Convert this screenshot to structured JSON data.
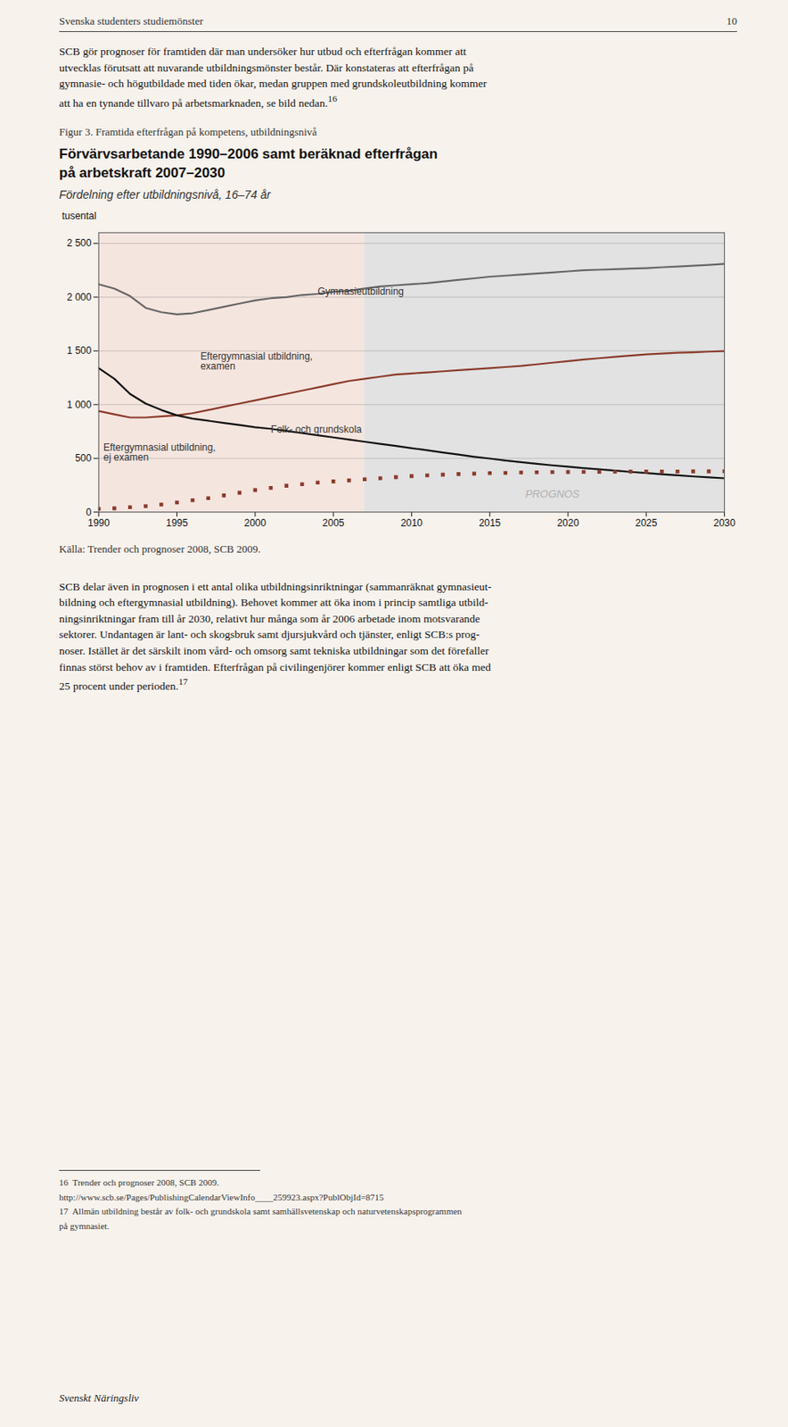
{
  "page": {
    "background": "#f7f2ec",
    "header_text": "Svenska studenters studiemönster",
    "page_num": "10",
    "para1": "SCB gör prognoser för framtiden där man undersöker hur utbud och efterfrågan kommer att\nutvecklas förutsatt att nuvarande utbildningsmönster består. Där konstateras att efterfrågan på\ngymnasie- och högutbildade med tiden ökar, medan gruppen med grundskoleutbildning kommer\natt ha en tynande tillvaro på arbetsmarknaden, se bild nedan.",
    "para1_super": "16",
    "fig_caption": "Figur 3. Framtida efterfrågan på kompetens, utbildningsnivå",
    "source": "Källa: Trender och prognoser 2008, SCB 2009.",
    "para2": "SCB delar även in prognosen i ett antal olika utbildningsinriktningar (sammanräknat gymnasieut-\nbildning och eftergymnasial utbildning). Behovet kommer att öka inom i princip samtliga utbild-\nningsinriktningar fram till år 2030, relativt hur många som år 2006 arbetade inom motsvarande\nsektorer. Undantagen är lant- och skogsbruk samt djursjukvård och tjänster, enligt SCB:s prog-\nnoser. Istället är det särskilt inom vård- och omsorg samt tekniska utbildningar som det förefaller\nfinnas störst behov av i framtiden. Efterfrågan på civilingenjörer kommer enligt SCB att öka med\n25 procent under perioden.",
    "para2_super": "17",
    "fn16_label": "16",
    "fn16_text": "  Trender och prognoser 2008, SCB 2009.",
    "fn16_url": "http://www.scb.se/Pages/PublishingCalendarViewInfo____259923.aspx?PublObjId=8715",
    "fn17_label": "17",
    "fn17_text": "  Allmän utbildning består av folk- och grundskola samt samhällsvetenskap och naturvetenskapsprogrammen",
    "fn17_text2": "på gymnasiet.",
    "footer_text": "Svenskt Näringsliv"
  },
  "chart_data": {
    "type": "line",
    "title": "Förvärvsarbetande 1990–2006 samt beräknad efterfrågan\npå arbetskraft 2007–2030",
    "subtitle": "Fördelning efter utbildningsnivå, 16–74 år",
    "ylabel": "tusental",
    "xlim": [
      1990,
      2030
    ],
    "ylim": [
      0,
      2600
    ],
    "xticks": [
      1990,
      1995,
      2000,
      2005,
      2010,
      2015,
      2020,
      2025,
      2030
    ],
    "yticks": [
      0,
      500,
      {
        "value": 1000,
        "label": "1 000"
      },
      {
        "value": 1500,
        "label": "1 500"
      },
      {
        "value": 2000,
        "label": "2 000"
      },
      {
        "value": 2500,
        "label": "2 500"
      }
    ],
    "grid": true,
    "x": [
      1990,
      1991,
      1992,
      1993,
      1994,
      1995,
      1996,
      1997,
      1998,
      1999,
      2000,
      2001,
      2002,
      2003,
      2004,
      2005,
      2006,
      2007,
      2008,
      2009,
      2010,
      2011,
      2012,
      2013,
      2014,
      2015,
      2016,
      2017,
      2018,
      2019,
      2020,
      2021,
      2022,
      2023,
      2024,
      2025,
      2026,
      2027,
      2028,
      2029,
      2030
    ],
    "regions": [
      {
        "x": [
          1990,
          2007
        ],
        "color": "#f5e5df"
      },
      {
        "x": [
          2007,
          2030
        ],
        "color": "#e2e2e2"
      }
    ],
    "annotations": [
      {
        "text": "PROGNOS",
        "x": 2019,
        "y": 170,
        "color": "#b0b0b0"
      }
    ],
    "series": [
      {
        "name": "Gymnasieutbildning",
        "color": "#666666",
        "line_style": "solid",
        "label_x": 2004,
        "label_y": 2020,
        "values": [
          2120,
          2080,
          2010,
          1900,
          1860,
          1840,
          1850,
          1880,
          1910,
          1940,
          1970,
          1990,
          2000,
          2020,
          2030,
          2050,
          2060,
          2080,
          2100,
          2110,
          2120,
          2130,
          2145,
          2160,
          2175,
          2190,
          2200,
          2210,
          2220,
          2230,
          2240,
          2250,
          2255,
          2260,
          2265,
          2270,
          2278,
          2285,
          2292,
          2300,
          2310
        ]
      },
      {
        "name": "Eftergymnasial utbildning,\nexamen",
        "color": "#8b3a2a",
        "line_style": "solid",
        "label_x": 1996.5,
        "label_y": 1330,
        "values": [
          940,
          910,
          880,
          880,
          890,
          900,
          920,
          950,
          980,
          1010,
          1040,
          1070,
          1100,
          1130,
          1160,
          1190,
          1220,
          1240,
          1260,
          1280,
          1290,
          1300,
          1310,
          1320,
          1330,
          1340,
          1350,
          1360,
          1375,
          1390,
          1405,
          1420,
          1432,
          1445,
          1456,
          1467,
          1475,
          1482,
          1487,
          1493,
          1498
        ]
      },
      {
        "name": "Folk- och grundskola",
        "color": "#111111",
        "line_style": "solid",
        "label_x": 2001,
        "label_y": 740,
        "values": [
          1340,
          1240,
          1100,
          1010,
          950,
          900,
          870,
          850,
          830,
          810,
          790,
          775,
          755,
          735,
          715,
          695,
          675,
          655,
          635,
          615,
          595,
          575,
          555,
          535,
          515,
          498,
          480,
          465,
          450,
          435,
          422,
          410,
          398,
          386,
          374,
          363,
          352,
          342,
          332,
          323,
          315
        ]
      },
      {
        "name": "Eftergymnasial utbildning,\nej examen",
        "color": "#8b3a2a",
        "line_style": "none",
        "marker": "square",
        "label_x": 1990.3,
        "label_y": 480,
        "values": [
          30,
          35,
          45,
          55,
          70,
          90,
          110,
          130,
          155,
          180,
          205,
          225,
          245,
          260,
          275,
          285,
          295,
          305,
          315,
          325,
          335,
          342,
          348,
          354,
          358,
          362,
          365,
          368,
          370,
          372,
          373,
          374,
          375,
          376,
          377,
          377,
          378,
          378,
          379,
          379,
          380
        ]
      }
    ]
  }
}
